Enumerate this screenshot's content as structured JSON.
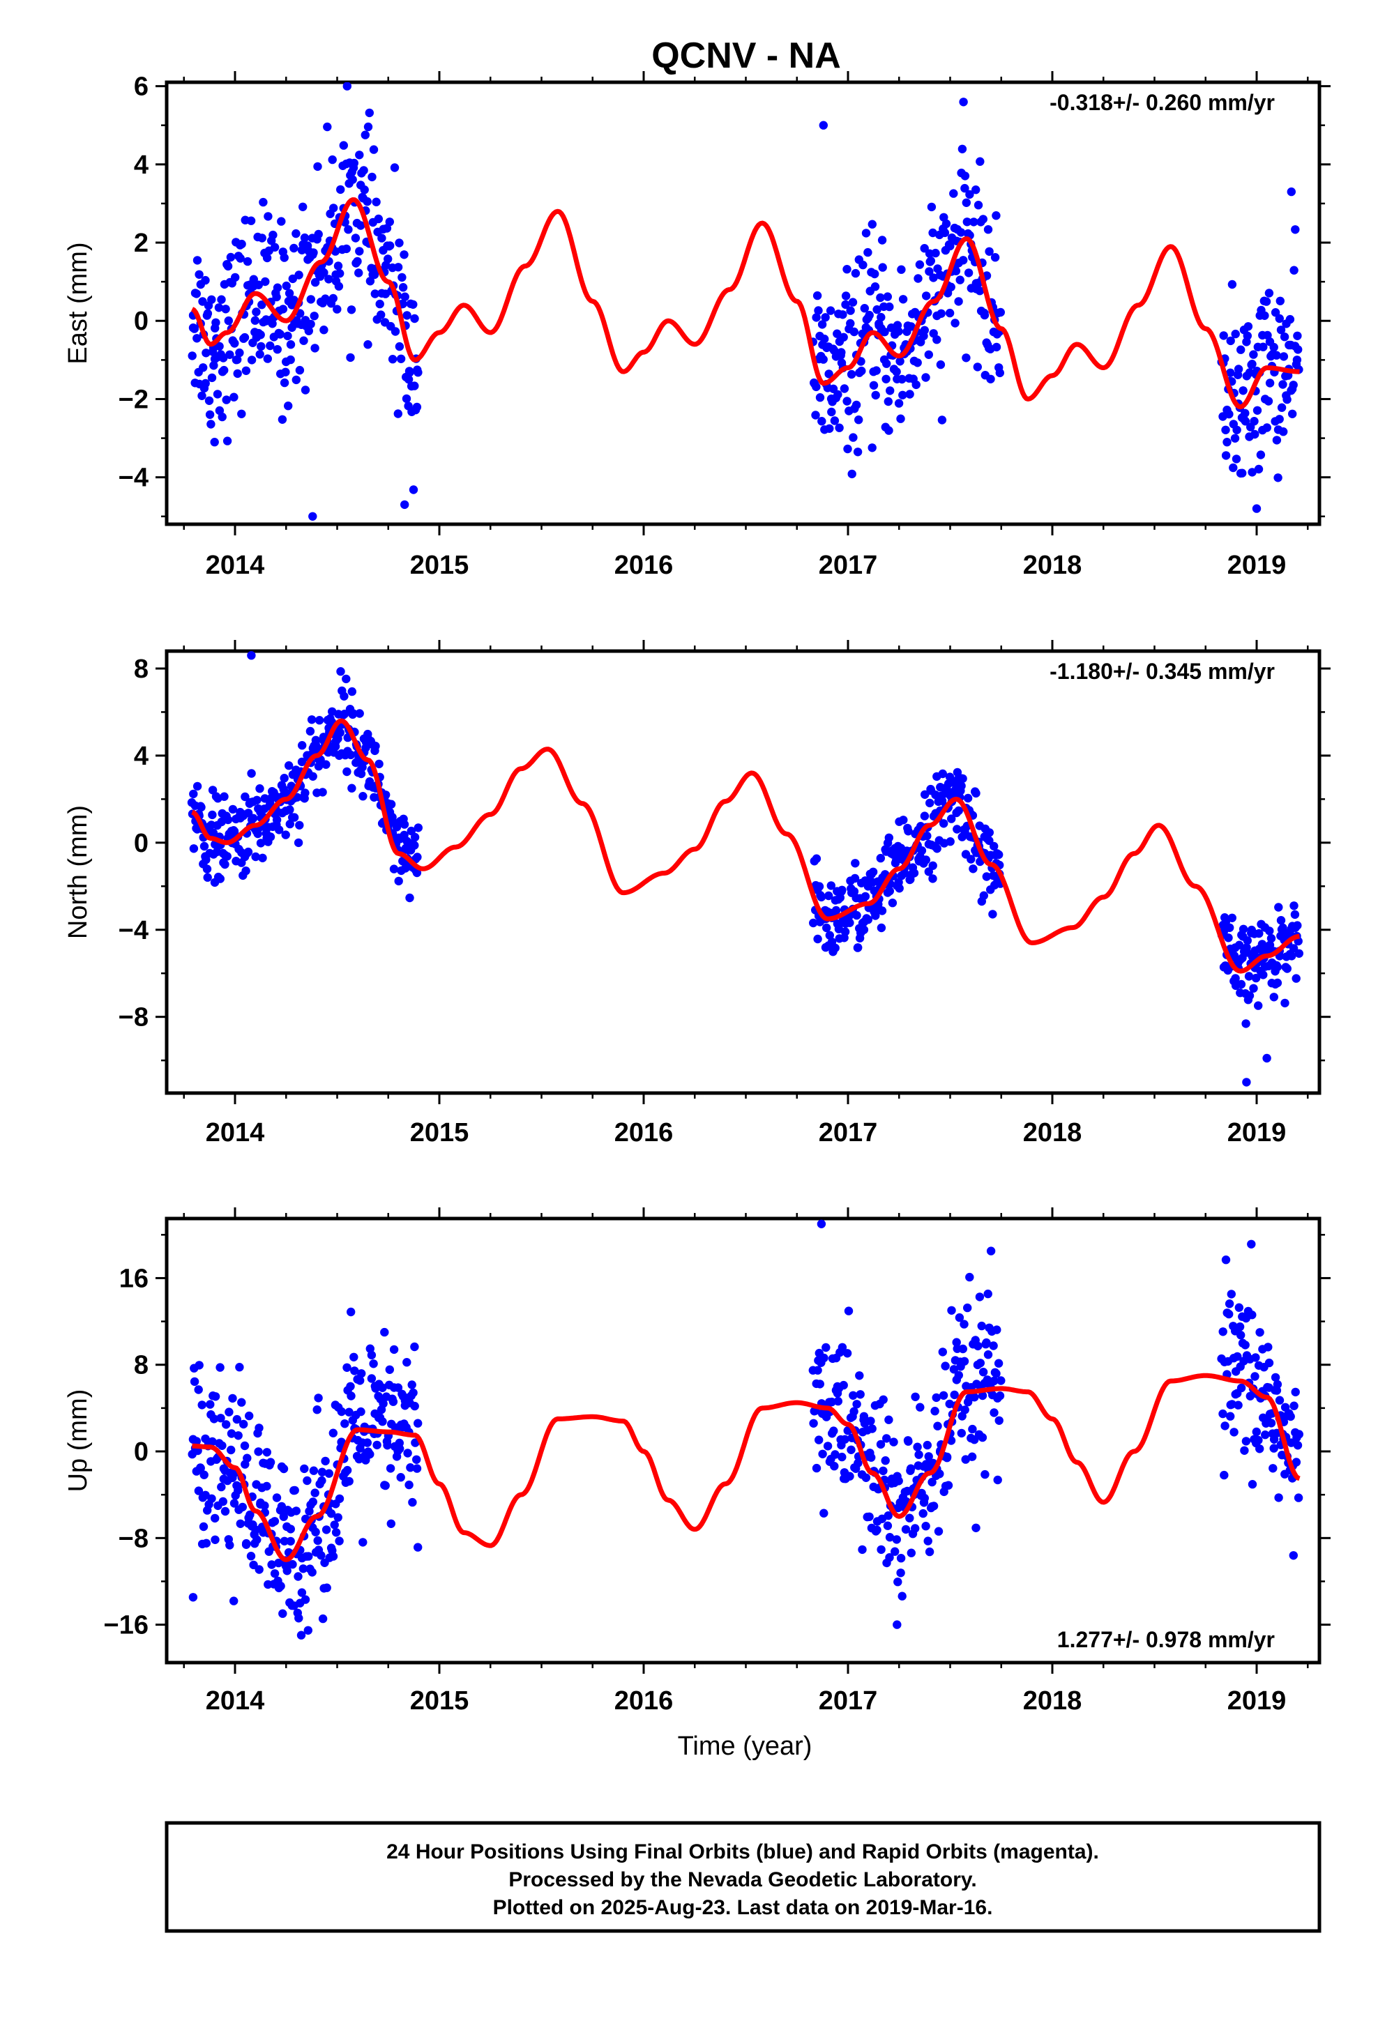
{
  "title": "QCNV - NA",
  "colors": {
    "points": "#0000ff",
    "fit": "#ff0000",
    "frame": "#000000"
  },
  "x_tick_labels": [
    "2014",
    "2015",
    "2016",
    "2017",
    "2018",
    "2019"
  ],
  "x_axis_label": "Time (year)",
  "footer": {
    "line1": "24 Hour Positions Using Final Orbits (blue) and Rapid Orbits (magenta).",
    "line2": "Processed by the Nevada Geodetic Laboratory.",
    "line3": "Plotted on 2025-Aug-23. Last data on 2019-Mar-16."
  },
  "chart_data": [
    {
      "type": "scatter",
      "panel": "east",
      "ylabel": "East (mm)",
      "rate_label": "-0.318+/- 0.260 mm/yr",
      "xlim": [
        2013.67,
        2019.33
      ],
      "ylim": [
        -5.2,
        6.1
      ],
      "yticks": [
        -4,
        -2,
        0,
        2,
        4,
        6
      ],
      "ytick_labels": [
        "−4",
        "−2",
        "0",
        "2",
        "4",
        "6"
      ],
      "data_segments": [
        [
          2013.79,
          2014.9
        ],
        [
          2016.83,
          2017.75
        ],
        [
          2018.83,
          2019.21
        ]
      ],
      "scatter_sd": 1.15,
      "fit": {
        "name": "model fit",
        "x": [
          2013.79,
          2013.88,
          2013.96,
          2014.1,
          2014.25,
          2014.42,
          2014.58,
          2014.75,
          2014.88,
          2015.0,
          2015.12,
          2015.25,
          2015.42,
          2015.58,
          2015.75,
          2015.9,
          2016.0,
          2016.12,
          2016.25,
          2016.42,
          2016.58,
          2016.75,
          2016.88,
          2017.0,
          2017.12,
          2017.25,
          2017.42,
          2017.58,
          2017.75,
          2017.88,
          2018.0,
          2018.12,
          2018.25,
          2018.42,
          2018.58,
          2018.75,
          2018.92,
          2019.05,
          2019.21
        ],
        "y": [
          0.3,
          -0.6,
          -0.3,
          0.7,
          0.0,
          1.5,
          3.1,
          1.0,
          -1.0,
          -0.3,
          0.4,
          -0.3,
          1.4,
          2.8,
          0.5,
          -1.3,
          -0.8,
          0.0,
          -0.6,
          0.8,
          2.5,
          0.5,
          -1.6,
          -1.2,
          -0.3,
          -0.9,
          0.5,
          2.1,
          -0.2,
          -2.0,
          -1.4,
          -0.6,
          -1.2,
          0.4,
          1.9,
          -0.2,
          -2.2,
          -1.2,
          -1.3
        ]
      },
      "outliers": {
        "x": [
          2013.9,
          2014.38,
          2014.83,
          2016.88,
          2019.0,
          2019.17
        ],
        "y": [
          -3.1,
          -5.0,
          -4.7,
          5.0,
          -4.8,
          3.3
        ]
      }
    },
    {
      "type": "scatter",
      "panel": "north",
      "ylabel": "North (mm)",
      "rate_label": "-1.180+/- 0.345 mm/yr",
      "xlim": [
        2013.67,
        2019.33
      ],
      "ylim": [
        -11.5,
        8.8
      ],
      "yticks": [
        -8,
        -4,
        0,
        4,
        8
      ],
      "ytick_labels": [
        "−8",
        "−4",
        "0",
        "4",
        "8"
      ],
      "data_segments": [
        [
          2013.79,
          2014.9
        ],
        [
          2016.83,
          2017.75
        ],
        [
          2018.83,
          2019.21
        ]
      ],
      "scatter_sd": 0.95,
      "fit": {
        "name": "model fit",
        "x": [
          2013.79,
          2013.88,
          2013.96,
          2014.1,
          2014.25,
          2014.4,
          2014.52,
          2014.65,
          2014.8,
          2014.92,
          2015.08,
          2015.25,
          2015.4,
          2015.53,
          2015.7,
          2015.9,
          2016.1,
          2016.25,
          2016.4,
          2016.53,
          2016.7,
          2016.9,
          2017.1,
          2017.25,
          2017.4,
          2017.53,
          2017.7,
          2017.9,
          2018.1,
          2018.25,
          2018.4,
          2018.52,
          2018.7,
          2018.92,
          2019.05,
          2019.21
        ],
        "y": [
          1.4,
          0.2,
          0.0,
          0.8,
          2.0,
          4.0,
          5.6,
          3.8,
          -0.5,
          -1.2,
          -0.2,
          1.3,
          3.4,
          4.3,
          1.8,
          -2.3,
          -1.4,
          -0.3,
          1.9,
          3.2,
          0.4,
          -3.5,
          -2.8,
          -1.2,
          0.8,
          2.0,
          -1.0,
          -4.6,
          -3.9,
          -2.5,
          -0.5,
          0.8,
          -2.0,
          -5.9,
          -5.2,
          -4.3
        ]
      },
      "outliers": {
        "x": [
          2014.08,
          2018.95,
          2019.05
        ],
        "y": [
          8.6,
          -11.0,
          -9.9
        ]
      }
    },
    {
      "type": "scatter",
      "panel": "up",
      "ylabel": "Up (mm)",
      "rate_label": "1.277+/- 0.978 mm/yr",
      "xlim": [
        2013.67,
        2019.33
      ],
      "ylim": [
        -19.5,
        21.5
      ],
      "yticks": [
        -16,
        -8,
        0,
        8,
        16
      ],
      "ytick_labels": [
        "−16",
        "−8",
        "0",
        "8",
        "16"
      ],
      "data_segments": [
        [
          2013.79,
          2014.9
        ],
        [
          2016.83,
          2017.75
        ],
        [
          2018.83,
          2019.21
        ]
      ],
      "scatter_sd": 4.2,
      "fit": {
        "name": "model fit",
        "x": [
          2013.79,
          2013.88,
          2014.0,
          2014.1,
          2014.25,
          2014.4,
          2014.6,
          2014.75,
          2014.88,
          2015.0,
          2015.12,
          2015.25,
          2015.4,
          2015.58,
          2015.75,
          2015.9,
          2016.0,
          2016.12,
          2016.25,
          2016.4,
          2016.58,
          2016.75,
          2016.9,
          2017.0,
          2017.12,
          2017.25,
          2017.4,
          2017.58,
          2017.75,
          2017.88,
          2018.0,
          2018.12,
          2018.25,
          2018.4,
          2018.58,
          2018.75,
          2018.92,
          2019.05,
          2019.21
        ],
        "y": [
          0.5,
          0.4,
          -1.5,
          -5.5,
          -10.0,
          -6.0,
          2.0,
          1.8,
          1.5,
          -3.0,
          -7.5,
          -8.7,
          -4.0,
          3.0,
          3.2,
          2.8,
          0.0,
          -4.5,
          -7.2,
          -3.0,
          4.0,
          4.5,
          4.0,
          2.5,
          -2.0,
          -6.0,
          -2.0,
          5.5,
          5.8,
          5.5,
          3.0,
          -1.0,
          -4.7,
          0.0,
          6.5,
          7.0,
          6.5,
          5.0,
          -2.5
        ]
      },
      "outliers": {
        "x": [
          2016.87,
          2017.24,
          2017.7
        ],
        "y": [
          21.0,
          -16.0,
          18.5
        ]
      }
    }
  ]
}
